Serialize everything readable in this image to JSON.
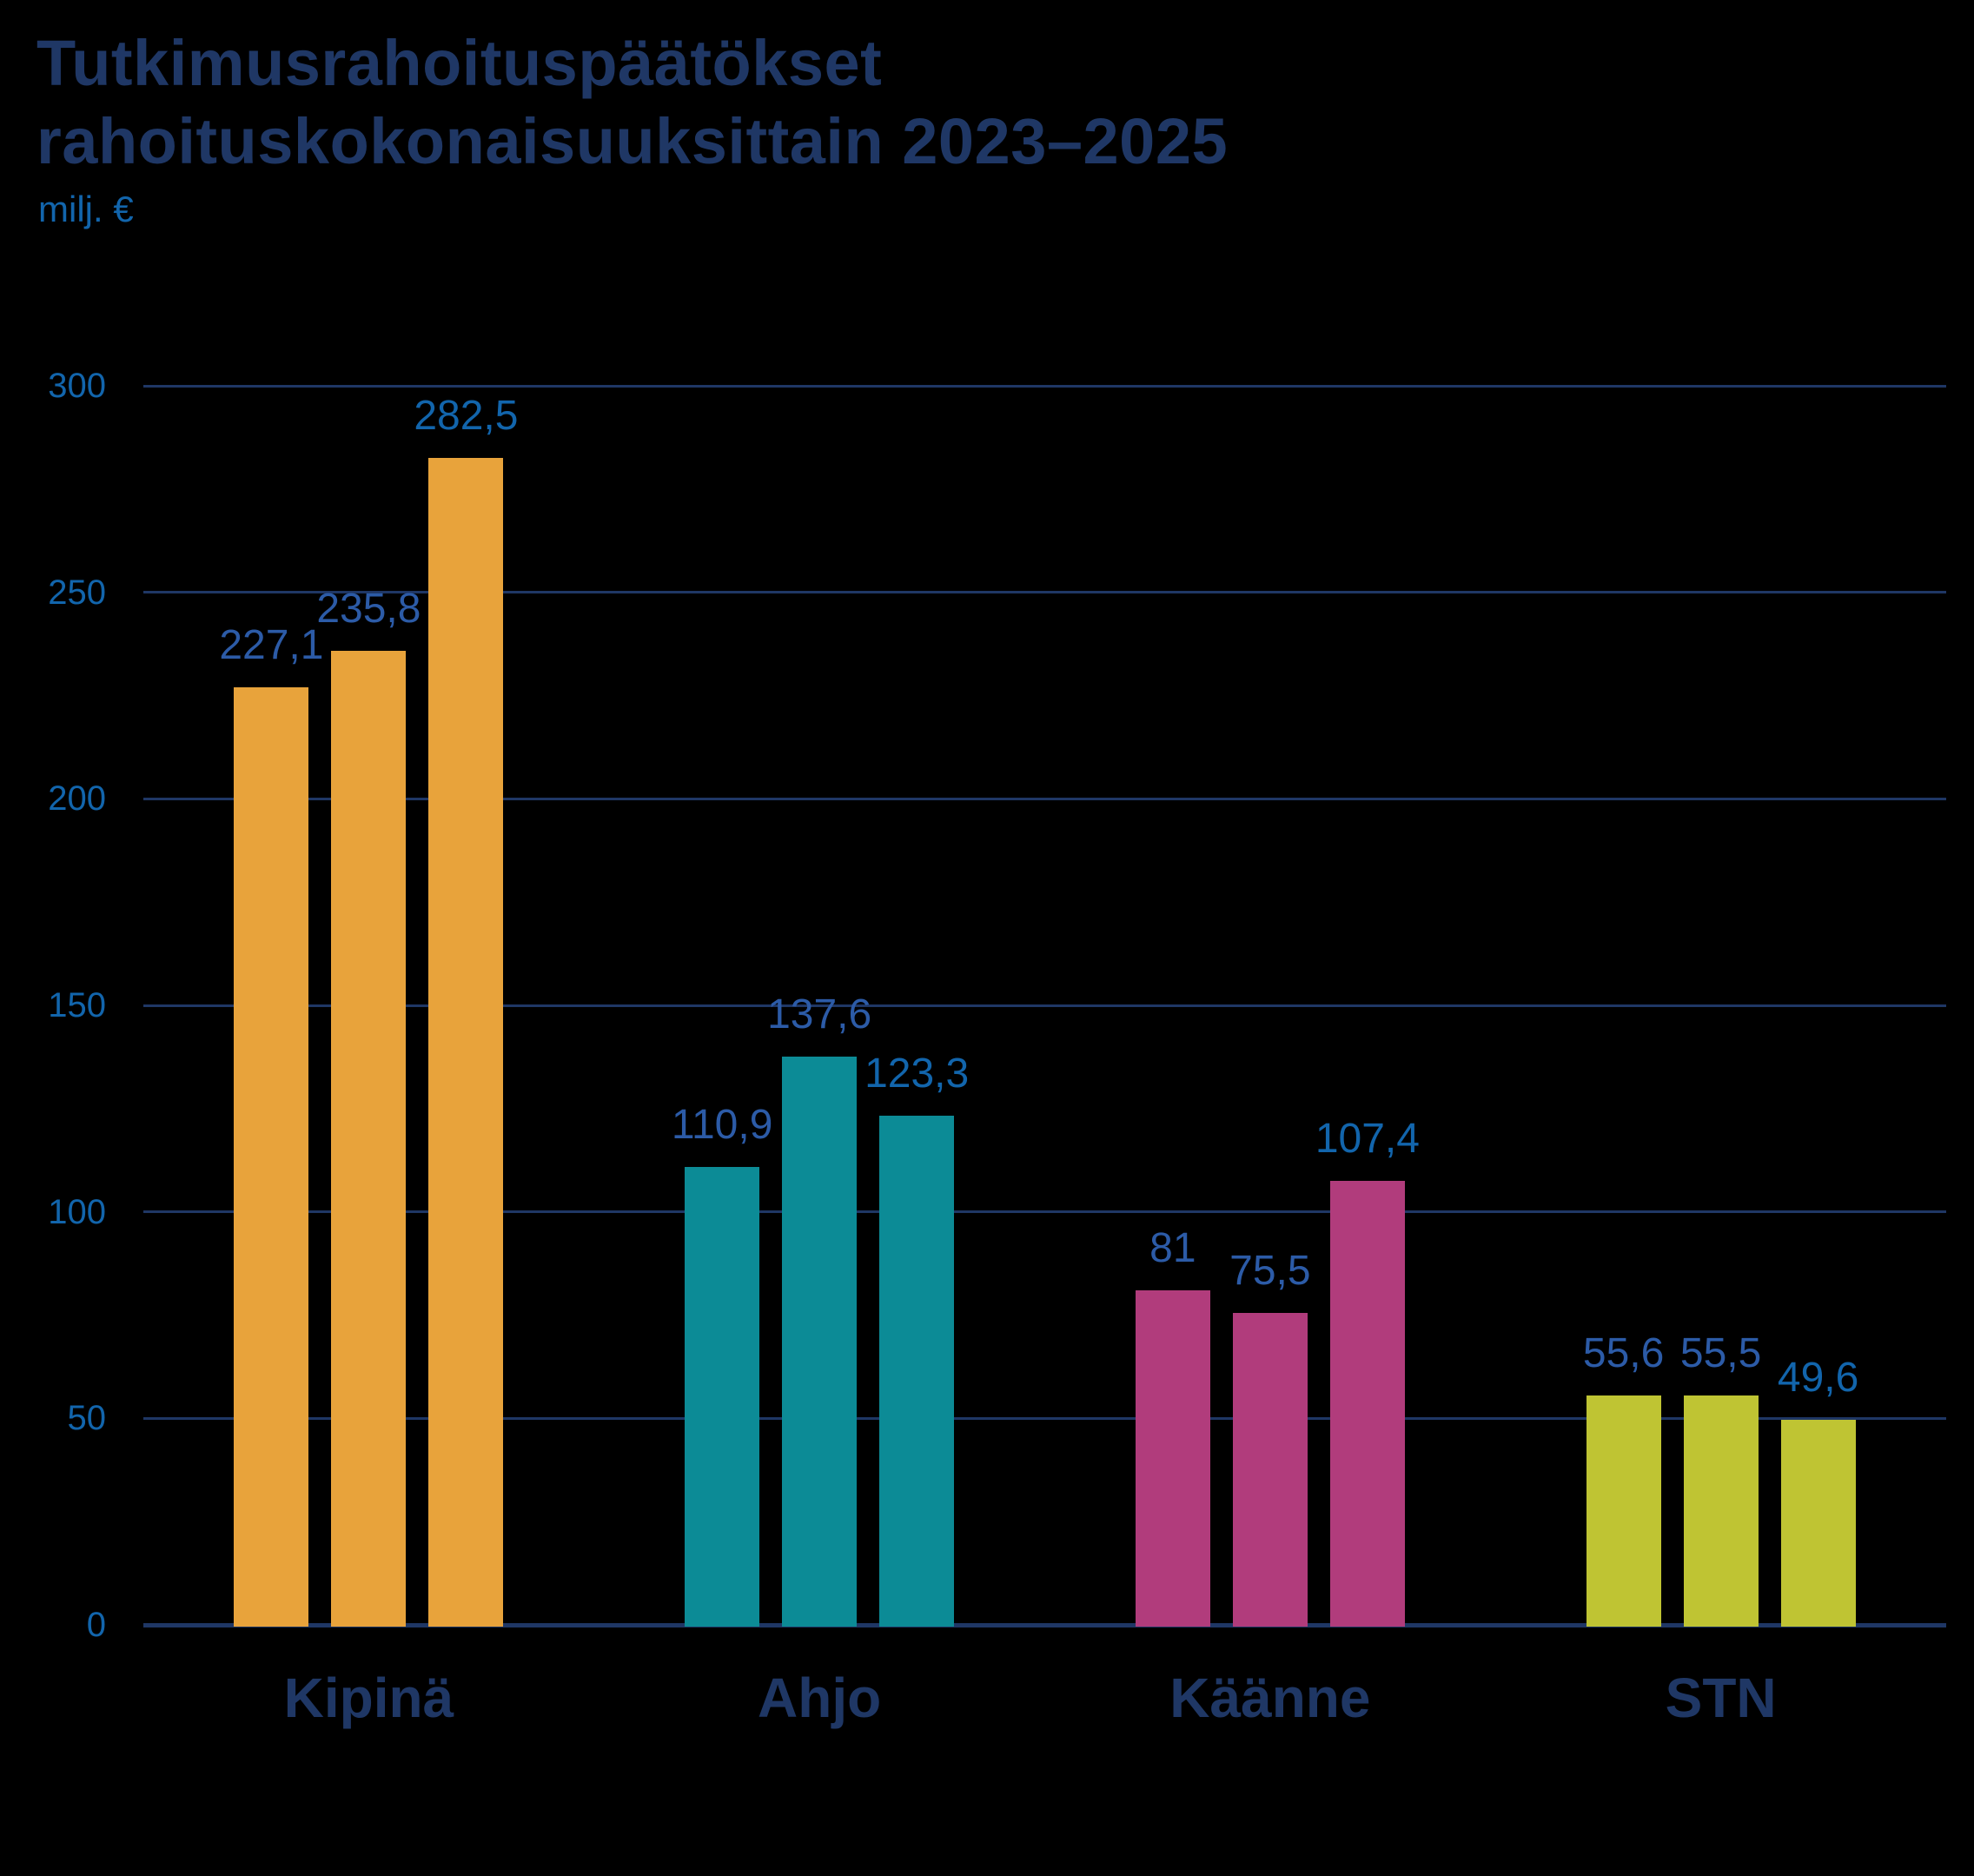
{
  "title": {
    "line1": "Tutkimusrahoituspäätökset",
    "line2": "rahoituskokonaisuuksittain 2023–2025"
  },
  "colors": {
    "background": "#000000",
    "title": "#1F3765",
    "category_label": "#1F3765",
    "gridline": "#1F3765",
    "tick_label": "#1265AC",
    "unit_label": "#1265AC",
    "value_label_default": "#2C5BA7",
    "value_label_third_bar": "#1265AC"
  },
  "chart_data": {
    "type": "bar",
    "title": "Tutkimusrahoituspäätökset rahoituskokonaisuuksittain 2023–2025",
    "xlabel": "",
    "ylabel": "milj. €",
    "ylim": [
      0,
      300
    ],
    "yticks": [
      300,
      250,
      200,
      150,
      100,
      50,
      0
    ],
    "grid": "horizontal",
    "legend": "none",
    "bars_per_category": 3,
    "categories": [
      "Kipinä",
      "Ahjo",
      "Käänne",
      "STN"
    ],
    "groups": [
      {
        "category": "Kipinä",
        "color": "#E8A33B",
        "values": [
          227.1,
          235.8,
          282.5
        ],
        "value_labels": [
          "227,1",
          "235,8",
          "282,5"
        ]
      },
      {
        "category": "Ahjo",
        "color": "#0C8B96",
        "values": [
          110.9,
          137.6,
          123.3
        ],
        "value_labels": [
          "110,9",
          "137,6",
          "123,3"
        ]
      },
      {
        "category": "Käänne",
        "color": "#B13C7C",
        "values": [
          81,
          75.5,
          107.4
        ],
        "value_labels": [
          "81",
          "75,5",
          "107,4"
        ]
      },
      {
        "category": "STN",
        "color": "#BFC433",
        "values": [
          55.6,
          55.5,
          49.6
        ],
        "value_labels": [
          "55,6",
          "55,5",
          "49,6"
        ]
      }
    ],
    "value_label_colors": [
      "#2C5BA7",
      "#2C5BA7",
      "#1265AC"
    ]
  }
}
